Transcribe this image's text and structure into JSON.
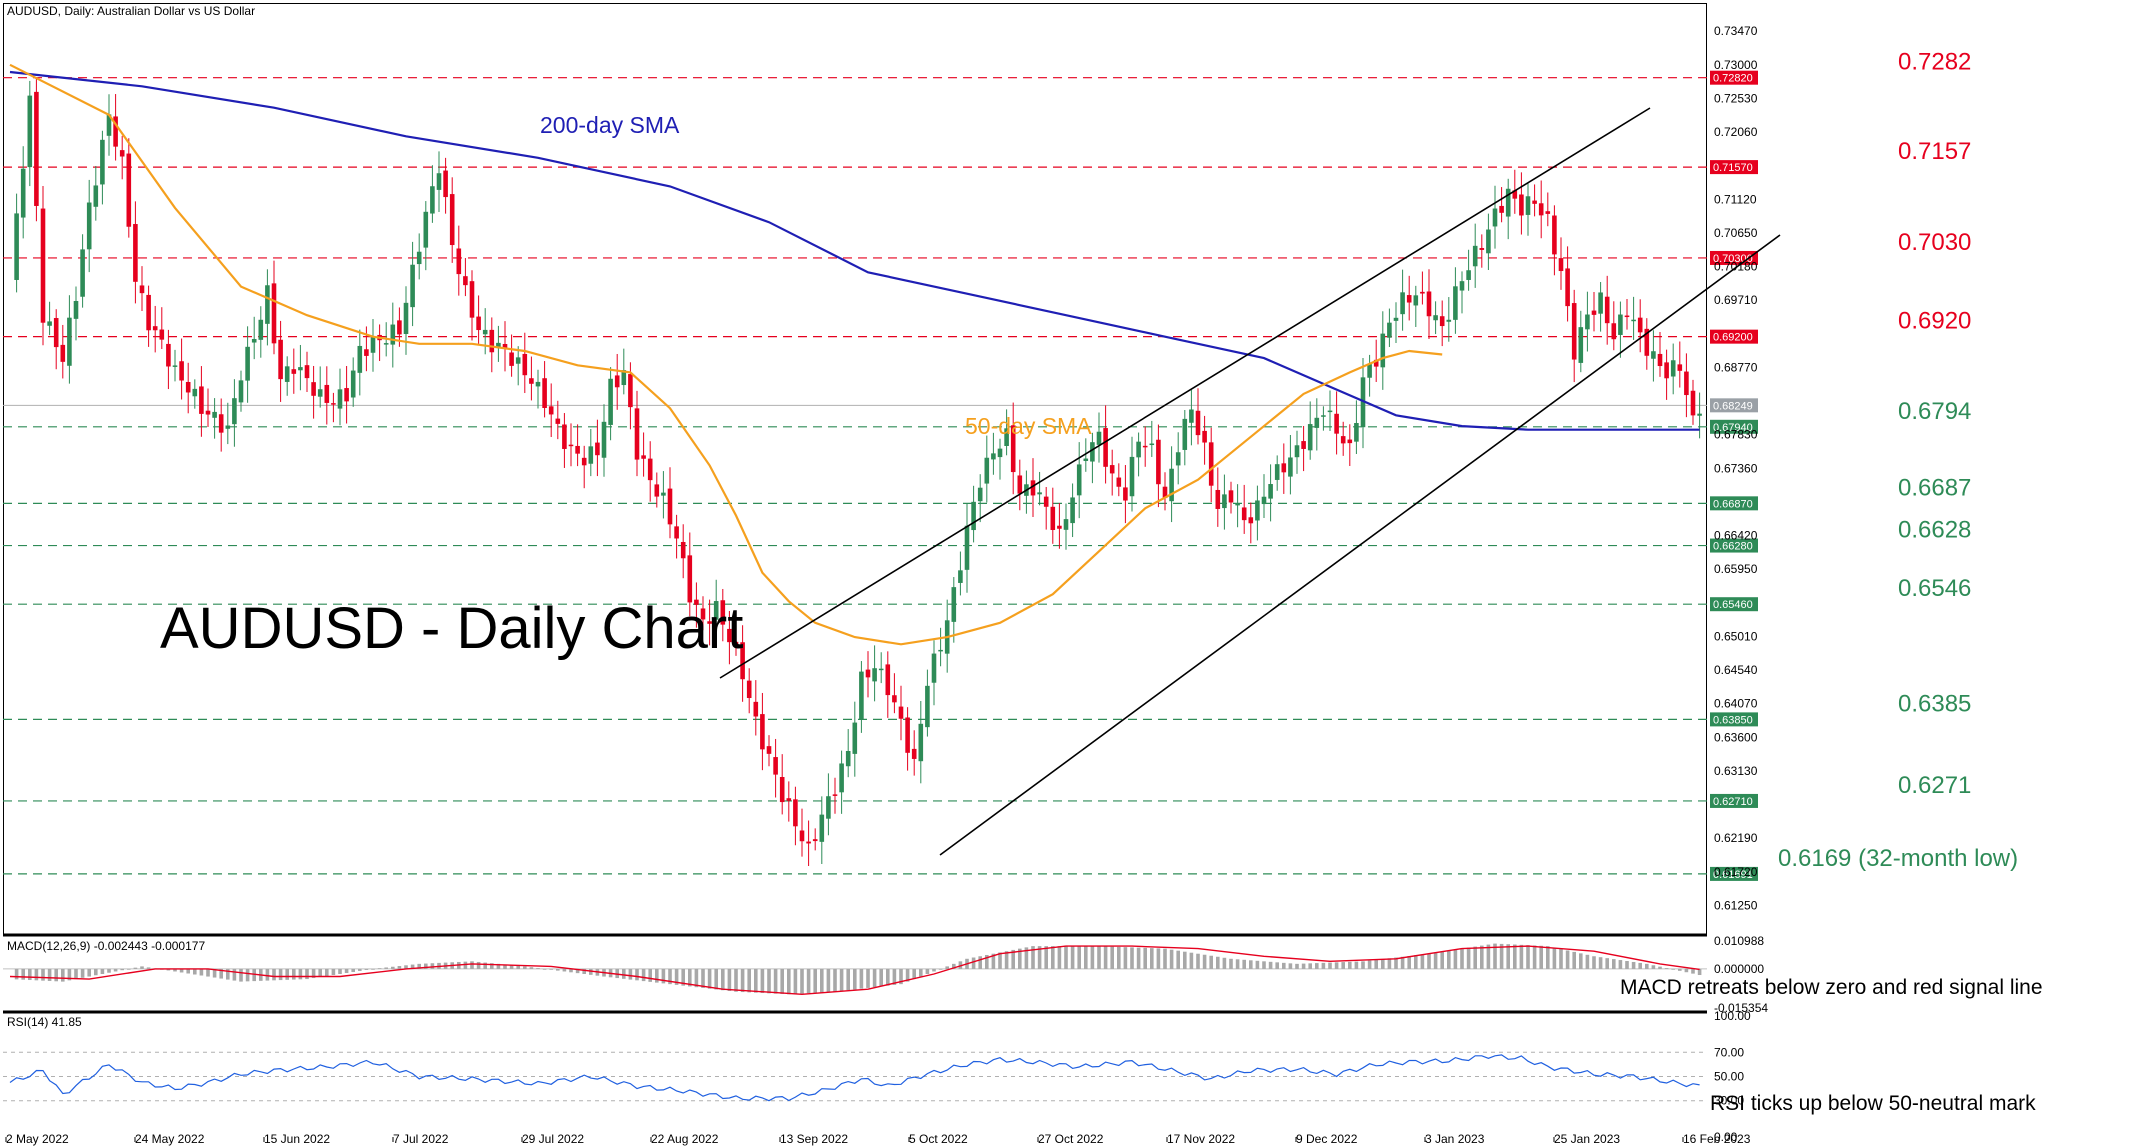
{
  "header": {
    "main": "AUDUSD, Daily:  Australian Dollar vs US Dollar",
    "macd": "MACD(12,26,9) -0.002443 -0.000177",
    "rsi": "RSI(14) 41.85"
  },
  "chart_title": "AUDUSD - Daily Chart",
  "sma_labels": {
    "sma200": "200-day SMA",
    "sma50": "50-day SMA"
  },
  "colors": {
    "bull": "#2e8b57",
    "bear": "#e6001e",
    "sma200": "#1f1fb4",
    "sma50": "#f5a01e",
    "resistance": "#e6001e",
    "support": "#2e8b57",
    "macd_signal": "#e6001e",
    "rsi": "#2060e0",
    "price_marker": "#9aa0a6"
  },
  "annotations": {
    "macd": "MACD retreats below zero and red signal line",
    "rsi": "RSI ticks up below 50-neutral mark"
  },
  "chart_data": {
    "type": "candlestick",
    "symbol": "AUDUSD",
    "timeframe": "Daily",
    "ylim": [
      0.6085,
      0.7385
    ],
    "last_price": 0.6824,
    "x_tick_labels": [
      "2 May 2022",
      "24 May 2022",
      "15 Jun 2022",
      "7 Jul 2022",
      "29 Jul 2022",
      "22 Aug 2022",
      "13 Sep 2022",
      "5 Oct 2022",
      "27 Oct 2022",
      "17 Nov 2022",
      "9 Dec 2022",
      "3 Jan 2023",
      "25 Jan 2023",
      "16 Feb 2023"
    ],
    "y_tick_labels": [
      "0.73470",
      "0.73000",
      "0.72530",
      "0.72060",
      "0.71120",
      "0.70650",
      "0.70180",
      "0.69710",
      "0.68770",
      "0.67830",
      "0.67360",
      "0.66420",
      "0.65950",
      "0.65010",
      "0.64540",
      "0.64070",
      "0.63600",
      "0.63130",
      "0.62190",
      "0.61720",
      "0.61250"
    ],
    "levels": [
      {
        "value": 0.7282,
        "label": "0.7282",
        "type": "resistance",
        "axis_label": "0.72820"
      },
      {
        "value": 0.7157,
        "label": "0.7157",
        "type": "resistance",
        "axis_label": "0.71570"
      },
      {
        "value": 0.703,
        "label": "0.7030",
        "type": "resistance",
        "axis_label": "0.70300"
      },
      {
        "value": 0.692,
        "label": "0.6920",
        "type": "resistance",
        "axis_label": "0.69200"
      },
      {
        "value": 0.6794,
        "label": "0.6794",
        "type": "support",
        "axis_label": "0.67940"
      },
      {
        "value": 0.6687,
        "label": "0.6687",
        "type": "support",
        "axis_label": "0.66870"
      },
      {
        "value": 0.6628,
        "label": "0.6628",
        "type": "support",
        "axis_label": "0.66280"
      },
      {
        "value": 0.6546,
        "label": "0.6546",
        "type": "support",
        "axis_label": "0.65460"
      },
      {
        "value": 0.6385,
        "label": "0.6385",
        "type": "support",
        "axis_label": "0.63850"
      },
      {
        "value": 0.6271,
        "label": "0.6271",
        "type": "support",
        "axis_label": "0.62710"
      },
      {
        "value": 0.6169,
        "label": "0.6169 (32-month low)",
        "type": "support",
        "axis_label": "0.61691"
      }
    ],
    "current_axis_label": "0.68249",
    "channel": {
      "upper": [
        [
          38,
          0.6405
        ],
        [
          143,
          0.7195
        ]
      ],
      "lower": [
        [
          46,
          0.614
        ],
        [
          127,
          0.687
        ],
        [
          172,
          0.7048
        ]
      ]
    },
    "anchors": [
      [
        0,
        0.7
      ],
      [
        3,
        0.725
      ],
      [
        5,
        0.695
      ],
      [
        8,
        0.689
      ],
      [
        10,
        0.698
      ],
      [
        12,
        0.71
      ],
      [
        15,
        0.723
      ],
      [
        17,
        0.716
      ],
      [
        19,
        0.7
      ],
      [
        21,
        0.694
      ],
      [
        23,
        0.691
      ],
      [
        25,
        0.687
      ],
      [
        27,
        0.685
      ],
      [
        29,
        0.682
      ],
      [
        31,
        0.6805
      ],
      [
        33,
        0.679
      ],
      [
        35,
        0.687
      ],
      [
        37,
        0.692
      ],
      [
        39,
        0.698
      ],
      [
        41,
        0.686
      ],
      [
        43,
        0.688
      ],
      [
        45,
        0.686
      ],
      [
        47,
        0.6835
      ],
      [
        49,
        0.683
      ],
      [
        51,
        0.684
      ],
      [
        53,
        0.69
      ],
      [
        55,
        0.691
      ],
      [
        57,
        0.692
      ],
      [
        59,
        0.693
      ],
      [
        61,
        0.701
      ],
      [
        63,
        0.709
      ],
      [
        65,
        0.716
      ],
      [
        67,
        0.705
      ],
      [
        69,
        0.698
      ],
      [
        71,
        0.693
      ],
      [
        73,
        0.691
      ],
      [
        75,
        0.69
      ],
      [
        77,
        0.688
      ],
      [
        79,
        0.686
      ],
      [
        81,
        0.683
      ],
      [
        83,
        0.679
      ],
      [
        85,
        0.676
      ],
      [
        87,
        0.675
      ],
      [
        89,
        0.676
      ],
      [
        91,
        0.685
      ],
      [
        93,
        0.687
      ],
      [
        95,
        0.676
      ],
      [
        97,
        0.672
      ],
      [
        99,
        0.669
      ],
      [
        101,
        0.664
      ],
      [
        103,
        0.656
      ],
      [
        105,
        0.652
      ],
      [
        107,
        0.654
      ],
      [
        109,
        0.65
      ],
      [
        111,
        0.645
      ],
      [
        113,
        0.638
      ],
      [
        115,
        0.633
      ],
      [
        117,
        0.628
      ],
      [
        119,
        0.624
      ],
      [
        121,
        0.62
      ],
      [
        123,
        0.625
      ],
      [
        125,
        0.629
      ],
      [
        127,
        0.634
      ],
      [
        129,
        0.644
      ],
      [
        131,
        0.646
      ],
      [
        133,
        0.643
      ],
      [
        135,
        0.638
      ],
      [
        137,
        0.632
      ],
      [
        139,
        0.644
      ],
      [
        141,
        0.649
      ],
      [
        143,
        0.656
      ],
      [
        145,
        0.665
      ],
      [
        147,
        0.672
      ],
      [
        149,
        0.676
      ],
      [
        151,
        0.678
      ],
      [
        153,
        0.67
      ],
      [
        155,
        0.671
      ],
      [
        157,
        0.668
      ],
      [
        159,
        0.664
      ],
      [
        161,
        0.67
      ],
      [
        163,
        0.676
      ],
      [
        165,
        0.678
      ],
      [
        167,
        0.672
      ],
      [
        169,
        0.67
      ],
      [
        171,
        0.678
      ],
      [
        173,
        0.676
      ],
      [
        175,
        0.669
      ],
      [
        177,
        0.677
      ],
      [
        179,
        0.682
      ],
      [
        181,
        0.676
      ],
      [
        183,
        0.668
      ],
      [
        185,
        0.67
      ],
      [
        187,
        0.666
      ],
      [
        189,
        0.668
      ],
      [
        191,
        0.672
      ],
      [
        193,
        0.674
      ],
      [
        195,
        0.676
      ],
      [
        197,
        0.679
      ],
      [
        199,
        0.682
      ],
      [
        201,
        0.679
      ],
      [
        203,
        0.676
      ],
      [
        205,
        0.686
      ],
      [
        207,
        0.689
      ],
      [
        209,
        0.694
      ],
      [
        211,
        0.697
      ],
      [
        213,
        0.698
      ],
      [
        215,
        0.696
      ],
      [
        217,
        0.693
      ],
      [
        219,
        0.698
      ],
      [
        221,
        0.702
      ],
      [
        223,
        0.705
      ],
      [
        225,
        0.709
      ],
      [
        227,
        0.712
      ],
      [
        229,
        0.71
      ],
      [
        231,
        0.711
      ],
      [
        233,
        0.708
      ],
      [
        235,
        0.701
      ],
      [
        237,
        0.69
      ],
      [
        239,
        0.695
      ],
      [
        241,
        0.697
      ],
      [
        243,
        0.692
      ],
      [
        245,
        0.696
      ],
      [
        247,
        0.692
      ],
      [
        249,
        0.689
      ],
      [
        251,
        0.687
      ],
      [
        253,
        0.688
      ],
      [
        255,
        0.68
      ],
      [
        256,
        0.6824
      ]
    ],
    "sma50_points": [
      [
        0,
        0.73
      ],
      [
        15,
        0.723
      ],
      [
        25,
        0.71
      ],
      [
        35,
        0.699
      ],
      [
        45,
        0.695
      ],
      [
        55,
        0.692
      ],
      [
        62,
        0.691
      ],
      [
        70,
        0.691
      ],
      [
        78,
        0.69
      ],
      [
        86,
        0.688
      ],
      [
        94,
        0.687
      ],
      [
        100,
        0.682
      ],
      [
        106,
        0.674
      ],
      [
        110,
        0.667
      ],
      [
        114,
        0.659
      ],
      [
        118,
        0.655
      ],
      [
        122,
        0.652
      ],
      [
        128,
        0.65
      ],
      [
        135,
        0.649
      ],
      [
        142,
        0.65
      ],
      [
        150,
        0.652
      ],
      [
        158,
        0.656
      ],
      [
        165,
        0.662
      ],
      [
        172,
        0.668
      ],
      [
        180,
        0.672
      ],
      [
        188,
        0.678
      ],
      [
        196,
        0.684
      ],
      [
        203,
        0.687
      ],
      [
        208,
        0.689
      ],
      [
        212,
        0.69
      ],
      [
        217,
        0.6895
      ]
    ],
    "sma200_points": [
      [
        0,
        0.729
      ],
      [
        20,
        0.727
      ],
      [
        40,
        0.724
      ],
      [
        60,
        0.72
      ],
      [
        80,
        0.717
      ],
      [
        100,
        0.713
      ],
      [
        115,
        0.708
      ],
      [
        130,
        0.701
      ],
      [
        145,
        0.698
      ],
      [
        160,
        0.695
      ],
      [
        175,
        0.692
      ],
      [
        190,
        0.689
      ],
      [
        200,
        0.685
      ],
      [
        210,
        0.681
      ],
      [
        220,
        0.6795
      ],
      [
        230,
        0.679
      ],
      [
        256,
        0.679
      ]
    ],
    "macd": {
      "ylim": [
        -0.0162,
        0.0122
      ],
      "y_tick_labels": [
        "0.010988",
        "0.000000",
        "-0.015354"
      ],
      "histogram_anchors": [
        [
          0,
          -0.004
        ],
        [
          8,
          -0.005
        ],
        [
          14,
          -0.002
        ],
        [
          20,
          0.001
        ],
        [
          25,
          -0.001
        ],
        [
          35,
          -0.005
        ],
        [
          45,
          -0.004
        ],
        [
          55,
          0.0
        ],
        [
          62,
          0.002
        ],
        [
          70,
          0.003
        ],
        [
          78,
          0.001
        ],
        [
          90,
          -0.003
        ],
        [
          100,
          -0.006
        ],
        [
          110,
          -0.009
        ],
        [
          118,
          -0.01
        ],
        [
          125,
          -0.009
        ],
        [
          135,
          -0.006
        ],
        [
          145,
          0.004
        ],
        [
          155,
          0.009
        ],
        [
          165,
          0.009
        ],
        [
          175,
          0.008
        ],
        [
          185,
          0.004
        ],
        [
          195,
          0.002
        ],
        [
          205,
          0.003
        ],
        [
          215,
          0.006
        ],
        [
          225,
          0.01
        ],
        [
          233,
          0.009
        ],
        [
          240,
          0.005
        ],
        [
          248,
          0.002
        ],
        [
          256,
          -0.0024
        ]
      ],
      "signal_anchors": [
        [
          0,
          -0.003
        ],
        [
          12,
          -0.004
        ],
        [
          22,
          0.0
        ],
        [
          30,
          0.0
        ],
        [
          40,
          -0.003
        ],
        [
          50,
          -0.003
        ],
        [
          60,
          0.0
        ],
        [
          70,
          0.002
        ],
        [
          82,
          0.001
        ],
        [
          95,
          -0.003
        ],
        [
          108,
          -0.008
        ],
        [
          120,
          -0.01
        ],
        [
          130,
          -0.008
        ],
        [
          140,
          -0.002
        ],
        [
          150,
          0.006
        ],
        [
          160,
          0.009
        ],
        [
          170,
          0.009
        ],
        [
          180,
          0.008
        ],
        [
          190,
          0.005
        ],
        [
          200,
          0.003
        ],
        [
          210,
          0.004
        ],
        [
          220,
          0.008
        ],
        [
          230,
          0.009
        ],
        [
          240,
          0.007
        ],
        [
          250,
          0.002
        ],
        [
          256,
          -0.0002
        ]
      ]
    },
    "rsi": {
      "ylim": [
        0,
        100
      ],
      "y_tick_labels": [
        "100.00",
        "70.00",
        "50.00",
        "30.00",
        "0.00"
      ],
      "anchors": [
        [
          0,
          45
        ],
        [
          5,
          55
        ],
        [
          8,
          35
        ],
        [
          15,
          60
        ],
        [
          20,
          45
        ],
        [
          25,
          40
        ],
        [
          30,
          45
        ],
        [
          35,
          52
        ],
        [
          40,
          55
        ],
        [
          48,
          58
        ],
        [
          55,
          62
        ],
        [
          62,
          50
        ],
        [
          70,
          48
        ],
        [
          80,
          44
        ],
        [
          88,
          50
        ],
        [
          95,
          42
        ],
        [
          102,
          38
        ],
        [
          110,
          32
        ],
        [
          118,
          32
        ],
        [
          123,
          38
        ],
        [
          129,
          48
        ],
        [
          133,
          42
        ],
        [
          139,
          52
        ],
        [
          145,
          60
        ],
        [
          150,
          64
        ],
        [
          155,
          62
        ],
        [
          162,
          58
        ],
        [
          170,
          62
        ],
        [
          176,
          55
        ],
        [
          182,
          48
        ],
        [
          188,
          55
        ],
        [
          195,
          56
        ],
        [
          201,
          52
        ],
        [
          207,
          60
        ],
        [
          212,
          62
        ],
        [
          218,
          63
        ],
        [
          224,
          67
        ],
        [
          229,
          65
        ],
        [
          233,
          58
        ],
        [
          240,
          52
        ],
        [
          246,
          50
        ],
        [
          252,
          45
        ],
        [
          256,
          42
        ]
      ]
    }
  }
}
